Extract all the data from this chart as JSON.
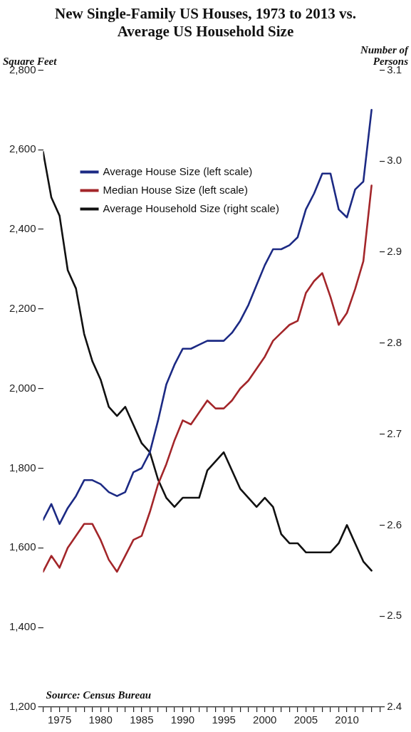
{
  "chart_data": {
    "type": "line",
    "title": [
      "New Single-Family US Houses, 1973 to 2013 vs.",
      "Average US Household Size"
    ],
    "ylabel": "Square Feet",
    "y2label": "Number of Persons",
    "annotations": [
      "Source: Census Bureau"
    ],
    "x": [
      1973,
      1974,
      1975,
      1976,
      1977,
      1978,
      1979,
      1980,
      1981,
      1982,
      1983,
      1984,
      1985,
      1986,
      1987,
      1988,
      1989,
      1990,
      1991,
      1992,
      1993,
      1994,
      1995,
      1996,
      1997,
      1998,
      1999,
      2000,
      2001,
      2002,
      2003,
      2004,
      2005,
      2006,
      2007,
      2008,
      2009,
      2010,
      2011,
      2012,
      2013
    ],
    "series": [
      {
        "name": "Average House Size (left scale)",
        "color": "#1c2a84",
        "values": [
          1670,
          1710,
          1660,
          1700,
          1730,
          1770,
          1770,
          1760,
          1740,
          1730,
          1740,
          1790,
          1800,
          1840,
          1920,
          2010,
          2060,
          2100,
          2100,
          2110,
          2120,
          2120,
          2120,
          2140,
          2170,
          2210,
          2260,
          2310,
          2350,
          2350,
          2360,
          2380,
          2450,
          2490,
          2540,
          2540,
          2450,
          2430,
          2500,
          2520,
          2700
        ]
      },
      {
        "name": "Median House Size (left scale)",
        "color": "#a3262a",
        "values": [
          1540,
          1580,
          1550,
          1600,
          1630,
          1660,
          1660,
          1620,
          1570,
          1540,
          1580,
          1620,
          1630,
          1690,
          1760,
          1810,
          1870,
          1920,
          1910,
          1940,
          1970,
          1950,
          1950,
          1970,
          2000,
          2020,
          2050,
          2080,
          2120,
          2140,
          2160,
          2170,
          2240,
          2270,
          2290,
          2230,
          2160,
          2190,
          2250,
          2320,
          2510
        ]
      },
      {
        "name": "Average Household Size (right scale)",
        "color": "#111111",
        "axis": "y2",
        "values": [
          3.01,
          2.96,
          2.94,
          2.88,
          2.86,
          2.81,
          2.78,
          2.76,
          2.73,
          2.72,
          2.73,
          2.71,
          2.69,
          2.68,
          2.65,
          2.63,
          2.62,
          2.63,
          2.63,
          2.63,
          2.66,
          2.67,
          2.68,
          2.66,
          2.64,
          2.63,
          2.62,
          2.63,
          2.62,
          2.59,
          2.58,
          2.58,
          2.57,
          2.57,
          2.57,
          2.57,
          2.58,
          2.6,
          2.58,
          2.56,
          2.55
        ]
      }
    ],
    "xlim": [
      1973,
      2014
    ],
    "xticks": [
      {
        "value": 1973,
        "label": null
      },
      {
        "value": 1974,
        "label": null
      },
      1975,
      {
        "value": 1976,
        "label": null
      },
      {
        "value": 1977,
        "label": null
      },
      {
        "value": 1978,
        "label": null
      },
      {
        "value": 1979,
        "label": null
      },
      1980,
      {
        "value": 1981,
        "label": null
      },
      {
        "value": 1982,
        "label": null
      },
      {
        "value": 1983,
        "label": null
      },
      {
        "value": 1984,
        "label": null
      },
      1985,
      {
        "value": 1986,
        "label": null
      },
      {
        "value": 1987,
        "label": null
      },
      {
        "value": 1988,
        "label": null
      },
      {
        "value": 1989,
        "label": null
      },
      1990,
      {
        "value": 1991,
        "label": null
      },
      {
        "value": 1992,
        "label": null
      },
      {
        "value": 1993,
        "label": null
      },
      {
        "value": 1994,
        "label": null
      },
      1995,
      {
        "value": 1996,
        "label": null
      },
      {
        "value": 1997,
        "label": null
      },
      {
        "value": 1998,
        "label": null
      },
      {
        "value": 1999,
        "label": null
      },
      2000,
      {
        "value": 2001,
        "label": null
      },
      {
        "value": 2002,
        "label": null
      },
      {
        "value": 2003,
        "label": null
      },
      {
        "value": 2004,
        "label": null
      },
      2005,
      {
        "value": 2006,
        "label": null
      },
      {
        "value": 2007,
        "label": null
      },
      {
        "value": 2008,
        "label": null
      },
      {
        "value": 2009,
        "label": null
      },
      2010,
      {
        "value": 2011,
        "label": null
      },
      {
        "value": 2012,
        "label": null
      },
      {
        "value": 2013,
        "label": null
      },
      {
        "value": 2014,
        "label": null
      }
    ],
    "ylim": [
      1200,
      2800
    ],
    "yticks": [
      {
        "value": 1200,
        "label": "1,200"
      },
      {
        "value": 1400,
        "label": "1,400"
      },
      {
        "value": 1600,
        "label": "1,600"
      },
      {
        "value": 1800,
        "label": "1,800"
      },
      {
        "value": 2000,
        "label": "2,000"
      },
      {
        "value": 2200,
        "label": "2,200"
      },
      {
        "value": 2400,
        "label": "2,400"
      },
      {
        "value": 2600,
        "label": "2,600"
      },
      {
        "value": 2800,
        "label": "2,800"
      }
    ],
    "y2lim": [
      2.4,
      3.1
    ],
    "y2ticks": [
      2.4,
      2.5,
      2.6,
      2.7,
      2.8,
      2.9,
      {
        "value": 3,
        "label": "3.0"
      },
      3.1
    ],
    "legend": "top left",
    "marker": "none"
  }
}
